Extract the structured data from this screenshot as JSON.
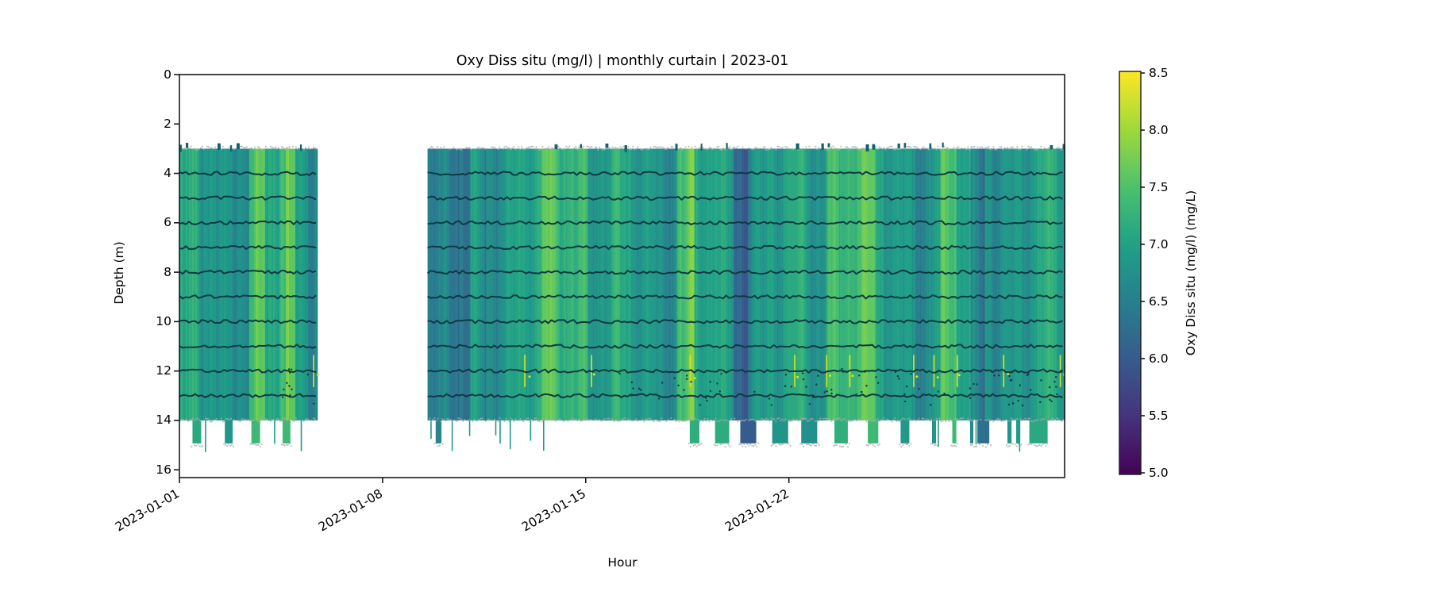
{
  "figure": {
    "background": "#ffffff"
  },
  "chart_data": {
    "type": "heatmap",
    "title": "Oxy Diss situ (mg/l) | monthly curtain | 2023-01",
    "xlabel": "Hour",
    "ylabel": "Depth (m)",
    "colormap": "viridis",
    "colorbar": {
      "label": "Oxy Diss situ (mg/l) (mg/L)",
      "vmin": 5.0,
      "vmax": 8.5,
      "tick_labels": [
        "8.5",
        "8.0",
        "7.5",
        "7.0",
        "6.5",
        "6.0",
        "5.5",
        "5.0"
      ],
      "tick_values": [
        8.5,
        8.0,
        7.5,
        7.0,
        6.5,
        6.0,
        5.5,
        5.0
      ]
    },
    "x_ticks": [
      {
        "label": "2023-01-01",
        "day": 0
      },
      {
        "label": "2023-01-08",
        "day": 7
      },
      {
        "label": "2023-01-15",
        "day": 14
      },
      {
        "label": "2023-01-22",
        "day": 21
      }
    ],
    "y_tick_labels": [
      "0",
      "2",
      "4",
      "6",
      "8",
      "10",
      "12",
      "14",
      "16"
    ],
    "y_tick_values": [
      0,
      2,
      4,
      6,
      8,
      10,
      12,
      14,
      16
    ],
    "ylim": [
      0,
      16.33
    ],
    "xlim_days": [
      0,
      30.5
    ],
    "curtain_top_depth_m": 3.0,
    "curtain_bottom_depth_m": 14.0,
    "deep_cast_bottom_m": 15.0,
    "typical_value_mgl": 6.9,
    "field_value_range_mgl": [
      6.0,
      8.1
    ],
    "blocks": [
      {
        "start_day": 0.0,
        "end_day": 4.73
      },
      {
        "start_day": 8.55,
        "end_day": 30.5
      }
    ],
    "instrument_line_depths_m": [
      4,
      5,
      6,
      7,
      8,
      9,
      10,
      11,
      12,
      13
    ],
    "bright_bands_days": [
      [
        2.55,
        2.8
      ],
      [
        3.55,
        3.8
      ],
      [
        12.6,
        13.9
      ],
      [
        17.25,
        17.55
      ],
      [
        22.4,
        23.8
      ],
      [
        26.35,
        26.6
      ]
    ],
    "dark_bands_days": [
      [
        8.6,
        9.9
      ],
      [
        19.2,
        19.5
      ],
      [
        27.35,
        27.65
      ]
    ],
    "deep_casts_day_width": [
      [
        0.6,
        0.3
      ],
      [
        1.7,
        0.27
      ],
      [
        2.63,
        0.3
      ],
      [
        3.69,
        0.27
      ],
      [
        8.93,
        0.2
      ],
      [
        17.75,
        0.33
      ],
      [
        18.7,
        0.49
      ],
      [
        19.6,
        0.55
      ],
      [
        20.7,
        0.55
      ],
      [
        21.7,
        0.55
      ],
      [
        22.8,
        0.46
      ],
      [
        23.9,
        0.36
      ],
      [
        25.0,
        0.3
      ],
      [
        26.0,
        0.14
      ],
      [
        26.7,
        0.14
      ],
      [
        27.3,
        0.11
      ],
      [
        27.7,
        0.41
      ],
      [
        28.6,
        0.14
      ],
      [
        28.9,
        0.14
      ],
      [
        29.6,
        0.63
      ]
    ],
    "thin_casts_days": [
      0.9,
      3.28,
      4.2,
      8.67,
      9.4,
      10.0,
      10.9,
      11.05,
      11.4,
      12.1,
      12.55,
      26.15,
      27.45,
      28.95
    ],
    "yellow_spike_days": [
      4.62,
      11.9,
      14.2,
      17.6,
      21.2,
      22.3,
      23.1,
      25.3,
      26.0,
      26.8,
      28.4,
      30.35
    ],
    "scatter_dot_regions": [
      {
        "day_range": [
          3.4,
          4.7
        ],
        "count": 12
      },
      {
        "day_range": [
          14.0,
          30.45
        ],
        "count": 95
      }
    ],
    "colors": {
      "spine": "#1a1a1a",
      "instrument_trace": "#0e3a42",
      "noise_speckle": "#a9a9a9",
      "surface_spike": "#11616e",
      "yellow_spike": "#e3e418"
    }
  }
}
